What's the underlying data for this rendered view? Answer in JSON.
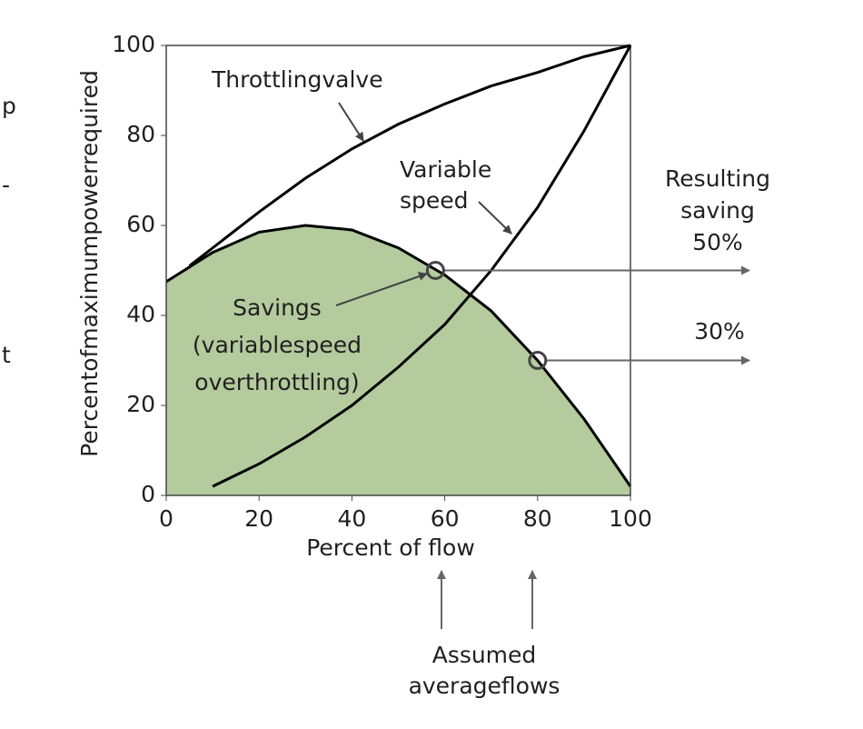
{
  "chart_data": {
    "type": "line",
    "x_label": "Percent of flow",
    "y_label": "Percentofmaximumpowerrequired",
    "xlim": [
      0,
      100
    ],
    "ylim": [
      0,
      100
    ],
    "xticks": [
      0,
      20,
      40,
      60,
      80,
      100
    ],
    "yticks": [
      0,
      20,
      40,
      60,
      80,
      100
    ],
    "area": {
      "color": "#b3cb9d",
      "x": [
        0,
        10,
        20,
        30,
        40,
        50,
        60,
        70,
        80,
        90,
        100
      ],
      "values": [
        47.5,
        54,
        58.5,
        60,
        59,
        55,
        49,
        41,
        30,
        17,
        2
      ]
    },
    "series": [
      {
        "color": "#000000",
        "x": [
          5,
          10,
          20,
          30,
          40,
          50,
          60,
          70,
          80,
          90,
          100
        ],
        "values": [
          51,
          55,
          63,
          70.5,
          77,
          82.5,
          87,
          91,
          94,
          97.5,
          100
        ]
      },
      {
        "color": "#000000",
        "x": [
          10,
          20,
          30,
          40,
          50,
          60,
          70,
          80,
          90,
          100
        ],
        "values": [
          2,
          7,
          13,
          20,
          28.5,
          38,
          50,
          64,
          81,
          100
        ]
      }
    ],
    "points": {
      "x": [
        58,
        80
      ],
      "values": [
        50,
        30
      ]
    },
    "annotations": {
      "throttling": [
        "Throttlingvalve"
      ],
      "variable": [
        "Variable",
        "speed"
      ],
      "savings": [
        "Savings",
        "(variablespeed",
        "overthrottling)"
      ],
      "resulting": [
        "Resulting",
        "saving",
        "50%"
      ],
      "second": [
        "30%"
      ],
      "assumed": [
        "Assumed",
        "averageflows"
      ]
    },
    "edge_fragments": [
      "p",
      "-",
      "t"
    ]
  }
}
